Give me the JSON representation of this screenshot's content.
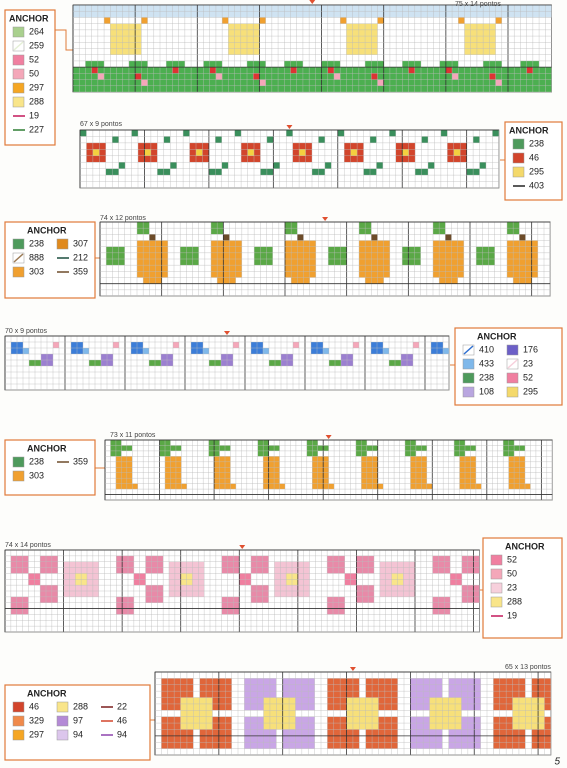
{
  "page": {
    "number": "5"
  },
  "patterns": [
    {
      "size": "75 x 14 pontos",
      "legend": {
        "title": "ANCHOR",
        "items": [
          {
            "code": "264",
            "color": "#a9d08e",
            "stitch": "cross"
          },
          {
            "code": "259",
            "color": "#e4efd6",
            "stitch": "half"
          },
          {
            "code": "52",
            "color": "#f07fa0",
            "stitch": "cross"
          },
          {
            "code": "50",
            "color": "#f4a7b9",
            "stitch": "cross"
          },
          {
            "code": "297",
            "color": "#f5a623",
            "stitch": "cross"
          },
          {
            "code": "288",
            "color": "#f9e58a",
            "stitch": "cross"
          },
          {
            "code": "19",
            "color": "#c2185b",
            "stitch": "line"
          },
          {
            "code": "227",
            "color": "#2e7d32",
            "stitch": "line"
          }
        ]
      }
    },
    {
      "size": "67 x 9 pontos",
      "legend": {
        "title": "ANCHOR",
        "items": [
          {
            "code": "238",
            "color": "#4e9a5c",
            "stitch": "cross"
          },
          {
            "code": "46",
            "color": "#d2452c",
            "stitch": "cross"
          },
          {
            "code": "295",
            "color": "#f4d96b",
            "stitch": "cross"
          },
          {
            "code": "403",
            "color": "#222222",
            "stitch": "line"
          }
        ]
      }
    },
    {
      "size": "74 x 12 pontos",
      "legend": {
        "title": "ANCHOR",
        "items": [
          {
            "code": "238",
            "color": "#4e9a5c",
            "stitch": "cross"
          },
          {
            "code": "888",
            "color": "#9c7a55",
            "stitch": "half"
          },
          {
            "code": "303",
            "color": "#f0a030",
            "stitch": "cross"
          },
          {
            "code": "307",
            "color": "#e08a1e",
            "stitch": "cross"
          },
          {
            "code": "212",
            "color": "#1b4d3e",
            "stitch": "line"
          },
          {
            "code": "359",
            "color": "#6d4c2a",
            "stitch": "line"
          }
        ]
      }
    },
    {
      "size": "70 x 9 pontos",
      "legend": {
        "title": "ANCHOR",
        "items": [
          {
            "code": "410",
            "color": "#2f6fd0",
            "stitch": "half"
          },
          {
            "code": "433",
            "color": "#7fb8ea",
            "stitch": "cross"
          },
          {
            "code": "238",
            "color": "#4e9a5c",
            "stitch": "cross"
          },
          {
            "code": "108",
            "color": "#b9a6e0",
            "stitch": "cross"
          },
          {
            "code": "176",
            "color": "#6c5fc7",
            "stitch": "cross"
          },
          {
            "code": "23",
            "color": "#f7d0dc",
            "stitch": "half"
          },
          {
            "code": "52",
            "color": "#f07fa0",
            "stitch": "cross"
          },
          {
            "code": "295",
            "color": "#f4d96b",
            "stitch": "cross"
          }
        ]
      }
    },
    {
      "size": "73 x 11 pontos",
      "legend": {
        "title": "ANCHOR",
        "items": [
          {
            "code": "238",
            "color": "#4e9a5c",
            "stitch": "cross"
          },
          {
            "code": "303",
            "color": "#f0a030",
            "stitch": "cross"
          },
          {
            "code": "359",
            "color": "#6d4c2a",
            "stitch": "line"
          }
        ]
      }
    },
    {
      "size": "74 x 14 pontos",
      "legend": {
        "title": "ANCHOR",
        "items": [
          {
            "code": "52",
            "color": "#f07fa0",
            "stitch": "cross"
          },
          {
            "code": "50",
            "color": "#f4a7b9",
            "stitch": "cross"
          },
          {
            "code": "23",
            "color": "#f7d0dc",
            "stitch": "cross"
          },
          {
            "code": "288",
            "color": "#f9e58a",
            "stitch": "cross"
          },
          {
            "code": "19",
            "color": "#c2185b",
            "stitch": "line"
          }
        ]
      }
    },
    {
      "size": "65 x 13 pontos",
      "legend": {
        "title": "ANCHOR",
        "items": [
          {
            "code": "46",
            "color": "#d2452c",
            "stitch": "cross"
          },
          {
            "code": "329",
            "color": "#f08a4b",
            "stitch": "cross"
          },
          {
            "code": "297",
            "color": "#f5a623",
            "stitch": "cross"
          },
          {
            "code": "288",
            "color": "#f9e58a",
            "stitch": "cross"
          },
          {
            "code": "97",
            "color": "#b48ad6",
            "stitch": "cross"
          },
          {
            "code": "94",
            "color": "#dcc6ec",
            "stitch": "cross"
          },
          {
            "code": "22",
            "color": "#7a1e1e",
            "stitch": "line"
          },
          {
            "code": "46",
            "color": "#d2452c",
            "stitch": "line"
          },
          {
            "code": "94",
            "color": "#8e44ad",
            "stitch": "line"
          }
        ]
      }
    }
  ]
}
